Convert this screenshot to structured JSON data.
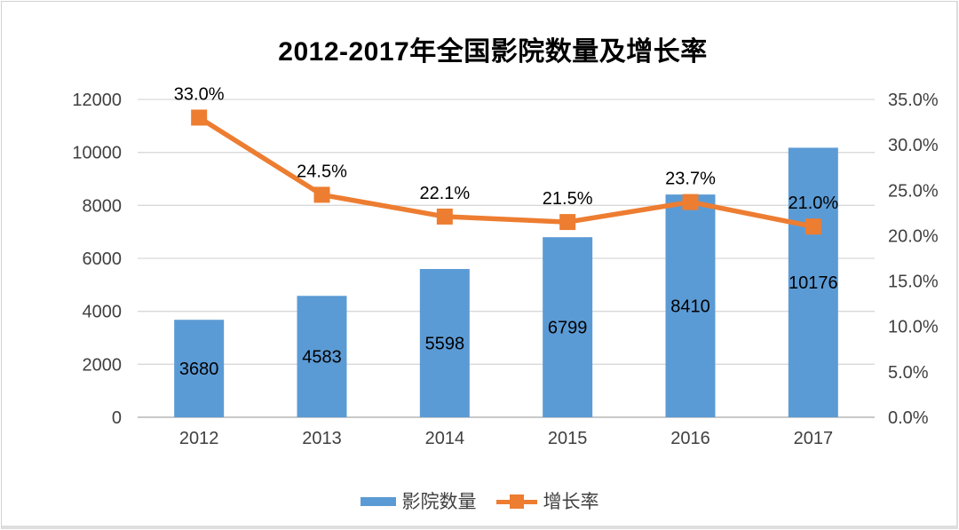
{
  "chart_data": {
    "type": "bar",
    "title": "2012-2017年全国影院数量及增长率",
    "categories": [
      "2012",
      "2013",
      "2014",
      "2015",
      "2016",
      "2017"
    ],
    "series": [
      {
        "name": "影院数量",
        "type": "bar",
        "axis": "left",
        "color": "#5B9BD5",
        "values": [
          3680,
          4583,
          5598,
          6799,
          8410,
          10176
        ],
        "labels": [
          "3680",
          "4583",
          "5598",
          "6799",
          "8410",
          "10176"
        ]
      },
      {
        "name": "增长率",
        "type": "line",
        "axis": "right",
        "color": "#ED7D31",
        "values": [
          33.0,
          24.5,
          22.1,
          21.5,
          23.7,
          21.0
        ],
        "labels": [
          "33.0%",
          "24.5%",
          "22.1%",
          "21.5%",
          "23.7%",
          "21.0%"
        ]
      }
    ],
    "left_axis": {
      "min": 0,
      "max": 12000,
      "tick_labels": [
        "0",
        "2000",
        "4000",
        "6000",
        "8000",
        "10000",
        "12000"
      ]
    },
    "right_axis": {
      "min": 0,
      "max": 35,
      "tick_labels": [
        "0.0%",
        "5.0%",
        "10.0%",
        "15.0%",
        "20.0%",
        "25.0%",
        "30.0%",
        "35.0%"
      ]
    },
    "grid": true,
    "legend_position": "bottom",
    "gridline_color": "#d9d9d9",
    "axis_line_color": "#c8c8c8",
    "tick_color": "#404040",
    "data_label_color": "#000000"
  }
}
